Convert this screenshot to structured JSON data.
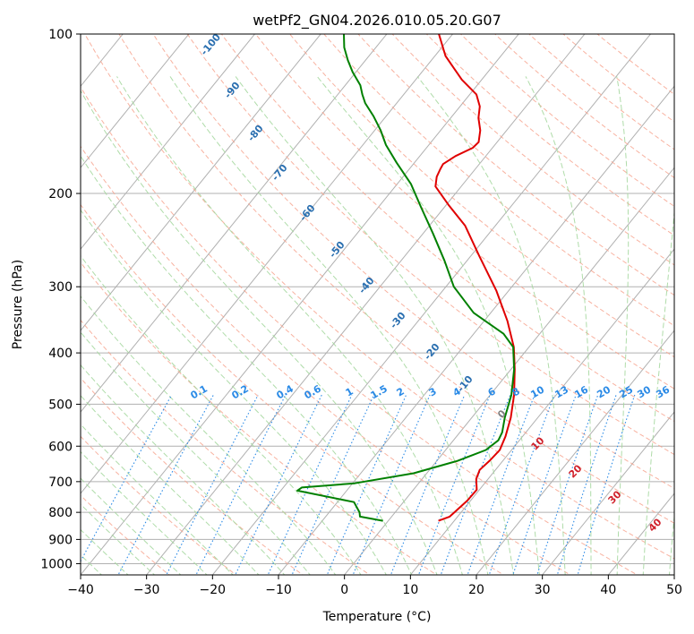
{
  "chart_data": {
    "type": "line",
    "title": "wetPf2_GN04.2026.010.05.20.G07",
    "xlabel": "Temperature (°C)",
    "ylabel": "Pressure (hPa)",
    "xlim": [
      -40,
      50
    ],
    "ylim": [
      1050,
      100
    ],
    "y_scale": "log",
    "skew_t": true,
    "grid": true,
    "x_ticks": [
      "−40",
      "−30",
      "−20",
      "−10",
      "0",
      "10",
      "20",
      "30",
      "40",
      "50"
    ],
    "y_ticks": [
      "100",
      "200",
      "300",
      "400",
      "500",
      "600",
      "700",
      "800",
      "900",
      "1000"
    ],
    "series": [
      {
        "role": "temperature",
        "color": "#e00000",
        "points": [
          {
            "t": 7.6,
            "p": 830
          },
          {
            "t": 8.8,
            "p": 815
          },
          {
            "t": 9.5,
            "p": 760
          },
          {
            "t": 9.6,
            "p": 725
          },
          {
            "t": 8.2,
            "p": 692
          },
          {
            "t": 7.6,
            "p": 665
          },
          {
            "t": 8.0,
            "p": 638
          },
          {
            "t": 8.2,
            "p": 610
          },
          {
            "t": 7.4,
            "p": 575
          },
          {
            "t": 5.9,
            "p": 530
          },
          {
            "t": 3.6,
            "p": 480
          },
          {
            "t": 0.6,
            "p": 430
          },
          {
            "t": -2.3,
            "p": 390
          },
          {
            "t": -6.5,
            "p": 348
          },
          {
            "t": -11.9,
            "p": 305
          },
          {
            "t": -18.8,
            "p": 262
          },
          {
            "t": -24.6,
            "p": 230
          },
          {
            "t": -29.7,
            "p": 210
          },
          {
            "t": -33.9,
            "p": 194
          },
          {
            "t": -34.9,
            "p": 186
          },
          {
            "t": -35.3,
            "p": 180
          },
          {
            "t": -35.5,
            "p": 176
          },
          {
            "t": -34.6,
            "p": 170
          },
          {
            "t": -33.0,
            "p": 164
          },
          {
            "t": -32.8,
            "p": 160
          },
          {
            "t": -34.0,
            "p": 152
          },
          {
            "t": -35.8,
            "p": 144
          },
          {
            "t": -37.0,
            "p": 137
          },
          {
            "t": -39.0,
            "p": 130
          },
          {
            "t": -43.0,
            "p": 122
          },
          {
            "t": -48.4,
            "p": 110
          },
          {
            "t": -52.1,
            "p": 100
          }
        ]
      },
      {
        "role": "dewpoint",
        "color": "#008000",
        "points": [
          {
            "t": -0.8,
            "p": 830
          },
          {
            "t": -4.8,
            "p": 815
          },
          {
            "t": -5.4,
            "p": 800
          },
          {
            "t": -7.5,
            "p": 765
          },
          {
            "t": -17.5,
            "p": 728
          },
          {
            "t": -17.2,
            "p": 718
          },
          {
            "t": -9.7,
            "p": 705
          },
          {
            "t": -2.0,
            "p": 675
          },
          {
            "t": 3.1,
            "p": 640
          },
          {
            "t": 6.1,
            "p": 610
          },
          {
            "t": 6.8,
            "p": 585
          },
          {
            "t": 6.4,
            "p": 565
          },
          {
            "t": 5.0,
            "p": 530
          },
          {
            "t": 3.2,
            "p": 480
          },
          {
            "t": 0.5,
            "p": 430
          },
          {
            "t": -2.4,
            "p": 390
          },
          {
            "t": -5.5,
            "p": 368
          },
          {
            "t": -12.6,
            "p": 336
          },
          {
            "t": -18.8,
            "p": 300
          },
          {
            "t": -23.4,
            "p": 268
          },
          {
            "t": -28.5,
            "p": 238
          },
          {
            "t": -33.6,
            "p": 212
          },
          {
            "t": -37.9,
            "p": 192
          },
          {
            "t": -42.7,
            "p": 175
          },
          {
            "t": -46.5,
            "p": 162
          },
          {
            "t": -49.1,
            "p": 152
          },
          {
            "t": -51.9,
            "p": 143
          },
          {
            "t": -54.8,
            "p": 135
          },
          {
            "t": -56.3,
            "p": 130
          },
          {
            "t": -57.7,
            "p": 125
          },
          {
            "t": -60.5,
            "p": 118
          },
          {
            "t": -62.7,
            "p": 112
          },
          {
            "t": -64.8,
            "p": 106
          },
          {
            "t": -66.5,
            "p": 100
          }
        ]
      }
    ],
    "dry_adiabat_labels": [
      "-100",
      "-90",
      "-80",
      "-70",
      "-60",
      "-50",
      "-40",
      "-30",
      "-20",
      "-10"
    ],
    "moist_adiabat_labels": [
      "0",
      "10",
      "20",
      "30",
      "40"
    ],
    "mixing_ratio_labels": [
      "0.1",
      "0.2",
      "0.4",
      "0.6",
      "1",
      "1.5",
      "2",
      "3",
      "4",
      "6",
      "8",
      "10",
      "13",
      "16",
      "20",
      "25",
      "30",
      "36"
    ],
    "colors": {
      "temperature": "#e00000",
      "dewpoint": "#008000",
      "isotherm": "#b0b0b0",
      "dry_adiabat": "#f7a58f",
      "moist_adiabat": "#a6d8a0",
      "mixing_ratio": "#2a8ae6",
      "dry_label": "#2a6fb0",
      "moist_label": "#d0202a",
      "zero_label": "#808080"
    }
  }
}
